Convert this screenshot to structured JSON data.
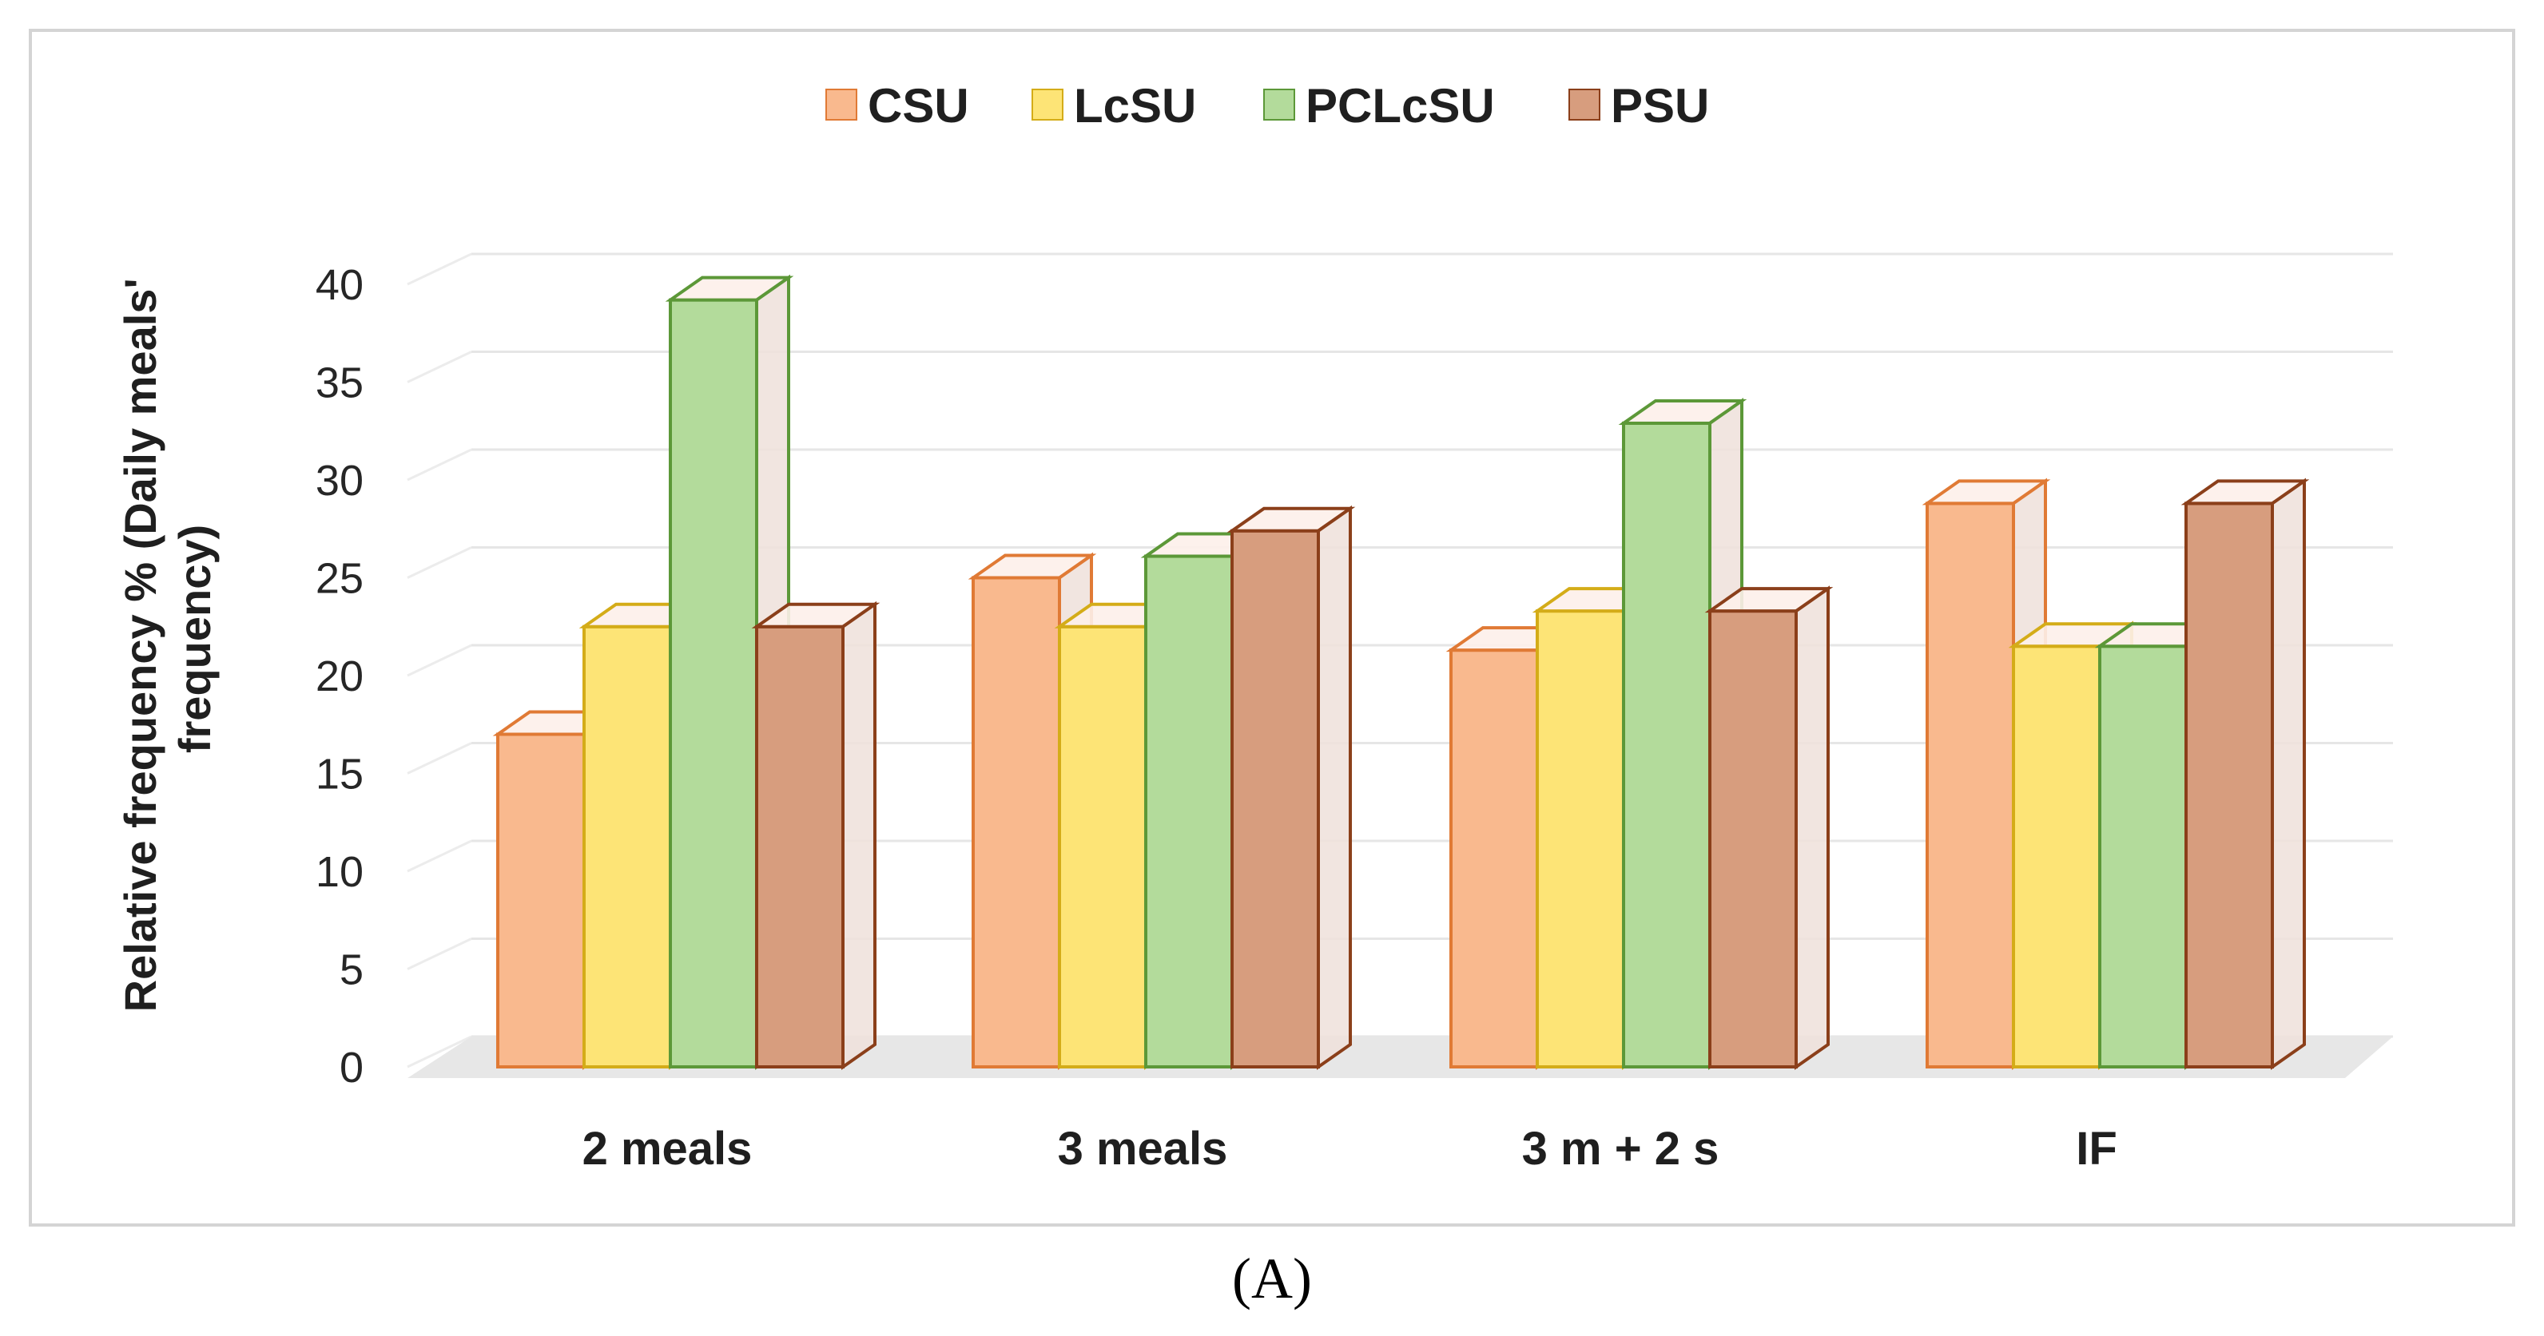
{
  "chart_data": {
    "type": "bar",
    "title": "",
    "categories": [
      "2 meals",
      "3 meals",
      "3 m + 2 s",
      "IF"
    ],
    "series": [
      {
        "name": "CSU",
        "values": [
          17,
          25,
          21.3,
          28.8
        ],
        "fill": "#f9b98e",
        "stroke": "#e07a35"
      },
      {
        "name": "LcSU",
        "values": [
          22.5,
          22.5,
          23.3,
          21.5
        ],
        "fill": "#fde476",
        "stroke": "#d4ac18"
      },
      {
        "name": "PCLcSU",
        "values": [
          39.2,
          26.1,
          32.9,
          21.5
        ],
        "fill": "#b3db9b",
        "stroke": "#5c9838"
      },
      {
        "name": "PSU",
        "values": [
          22.5,
          27.4,
          23.3,
          28.8
        ],
        "fill": "#d79d7e",
        "stroke": "#8b3f1a"
      }
    ],
    "xlabel": "",
    "ylabel_lines": [
      "Relative frequency % (Daily meals'",
      "frequency)"
    ],
    "ylim": [
      0,
      40
    ],
    "yticks": [
      "0",
      "5",
      "10",
      "15",
      "20",
      "25",
      "30",
      "35",
      "40"
    ],
    "grid": true,
    "legend_position": "top-center",
    "caption": "(A)"
  }
}
